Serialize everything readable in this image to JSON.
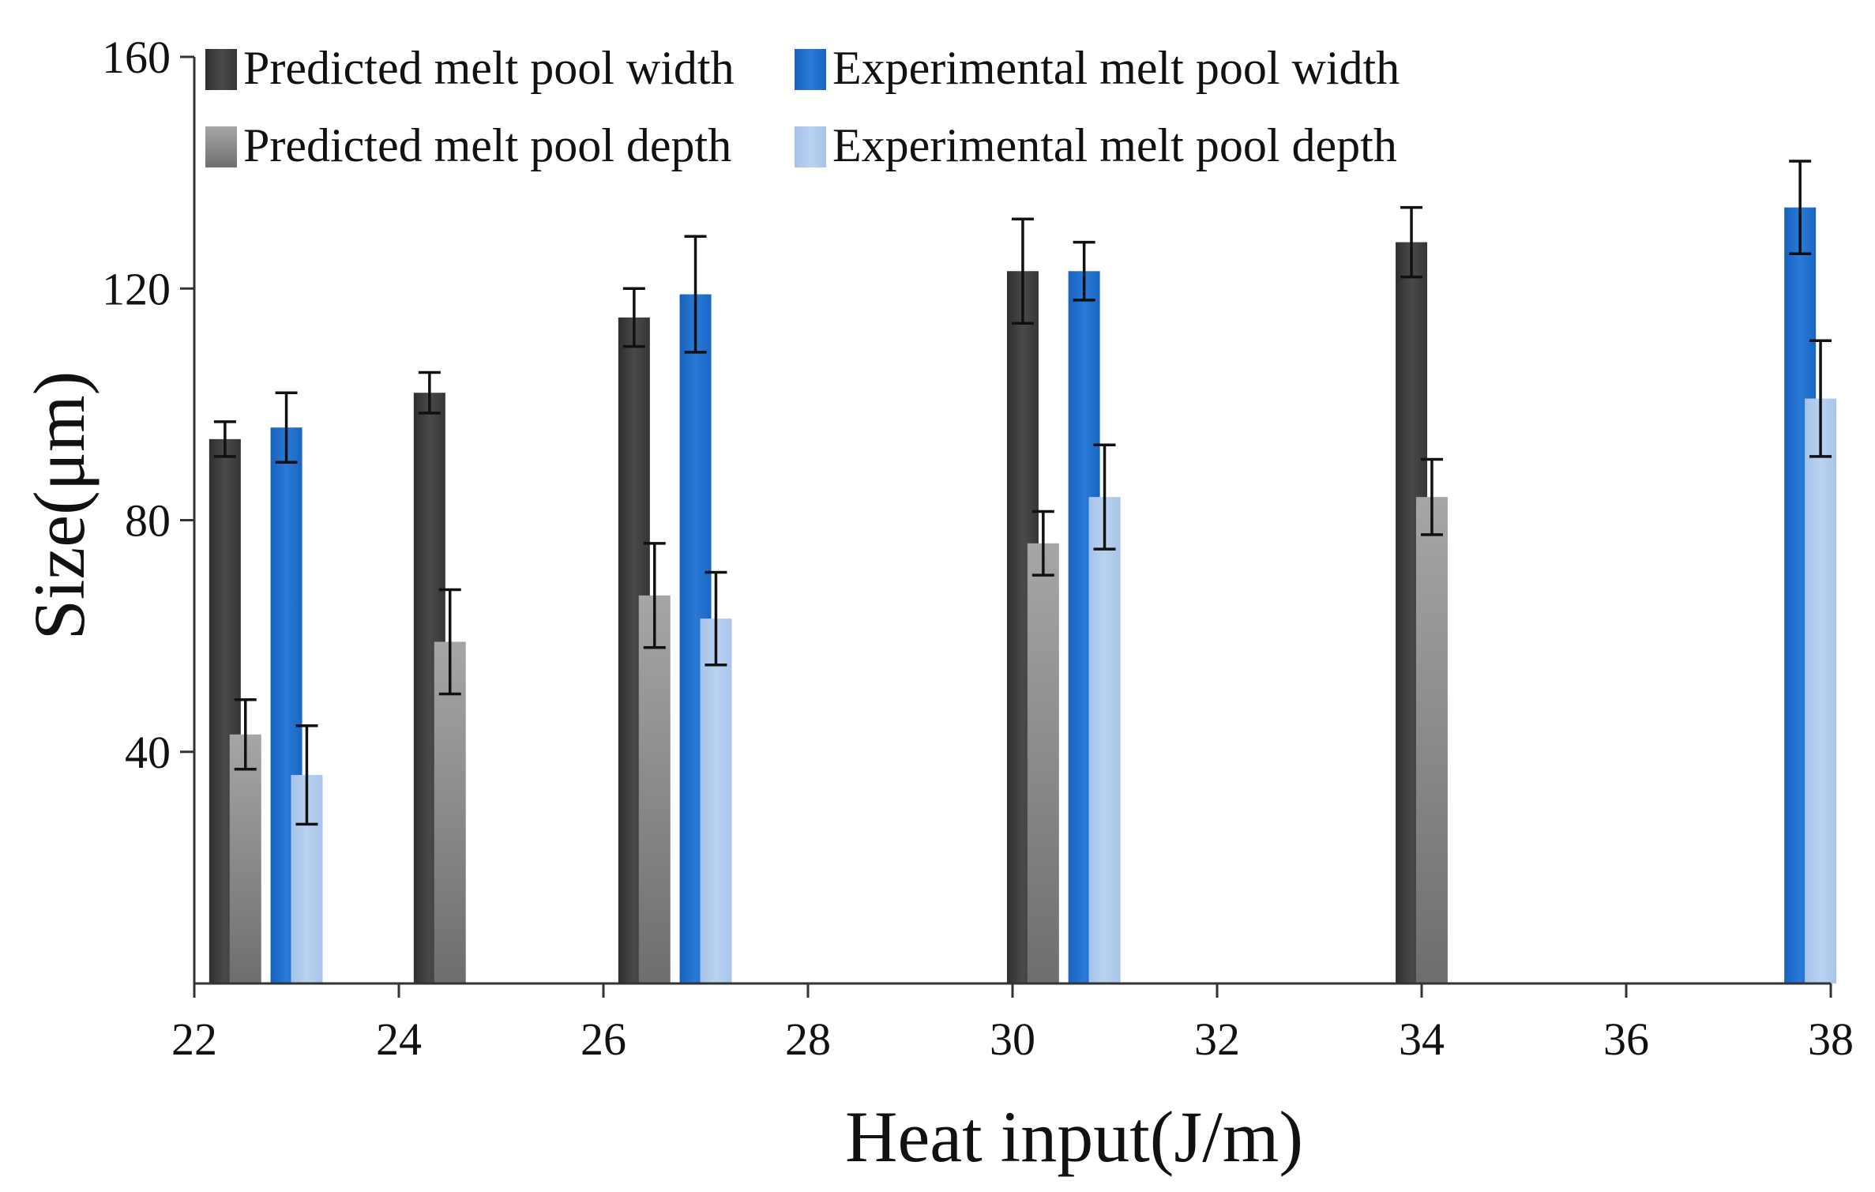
{
  "chart_data": {
    "type": "bar",
    "title": "",
    "xlabel": "Heat input(J/m)",
    "ylabel": "Size(μm)",
    "xlim": [
      22,
      38
    ],
    "ylim": [
      0,
      160
    ],
    "x_ticks": [
      "22",
      "24",
      "26",
      "28",
      "30",
      "32",
      "34",
      "36",
      "38"
    ],
    "y_ticks": [
      "40",
      "80",
      "120",
      "160"
    ],
    "legend_position": "top-left",
    "series": [
      {
        "name": "Predicted melt pool width",
        "color": "#404040",
        "points": [
          {
            "x": 22.3,
            "value": 94,
            "error": 3
          },
          {
            "x": 24.3,
            "value": 102,
            "error": 3.5
          },
          {
            "x": 26.3,
            "value": 115,
            "error": 5
          },
          {
            "x": 30.1,
            "value": 123,
            "error": 9
          },
          {
            "x": 33.9,
            "value": 128,
            "error": 6
          }
        ]
      },
      {
        "name": "Experimental melt pool width",
        "color": "#1f6fcc",
        "points": [
          {
            "x": 22.9,
            "value": 96,
            "error": 6
          },
          {
            "x": 26.9,
            "value": 119,
            "error": 10
          },
          {
            "x": 30.7,
            "value": 123,
            "error": 5
          },
          {
            "x": 37.7,
            "value": 134,
            "error": 8
          }
        ]
      },
      {
        "name": "Predicted melt pool depth",
        "color": "#9a9a9a",
        "points": [
          {
            "x": 22.5,
            "value": 43,
            "error": 6
          },
          {
            "x": 24.5,
            "value": 59,
            "error": 9
          },
          {
            "x": 26.5,
            "value": 67,
            "error": 9
          },
          {
            "x": 30.3,
            "value": 76,
            "error": 5.5
          },
          {
            "x": 34.1,
            "value": 84,
            "error": 6.5
          }
        ]
      },
      {
        "name": "Experimental melt pool depth",
        "color": "#adc8ea",
        "points": [
          {
            "x": 23.1,
            "value": 36,
            "error": 8.5
          },
          {
            "x": 27.1,
            "value": 63,
            "error": 8
          },
          {
            "x": 30.9,
            "value": 84,
            "error": 9
          },
          {
            "x": 37.9,
            "value": 101,
            "error": 10
          }
        ]
      }
    ]
  }
}
